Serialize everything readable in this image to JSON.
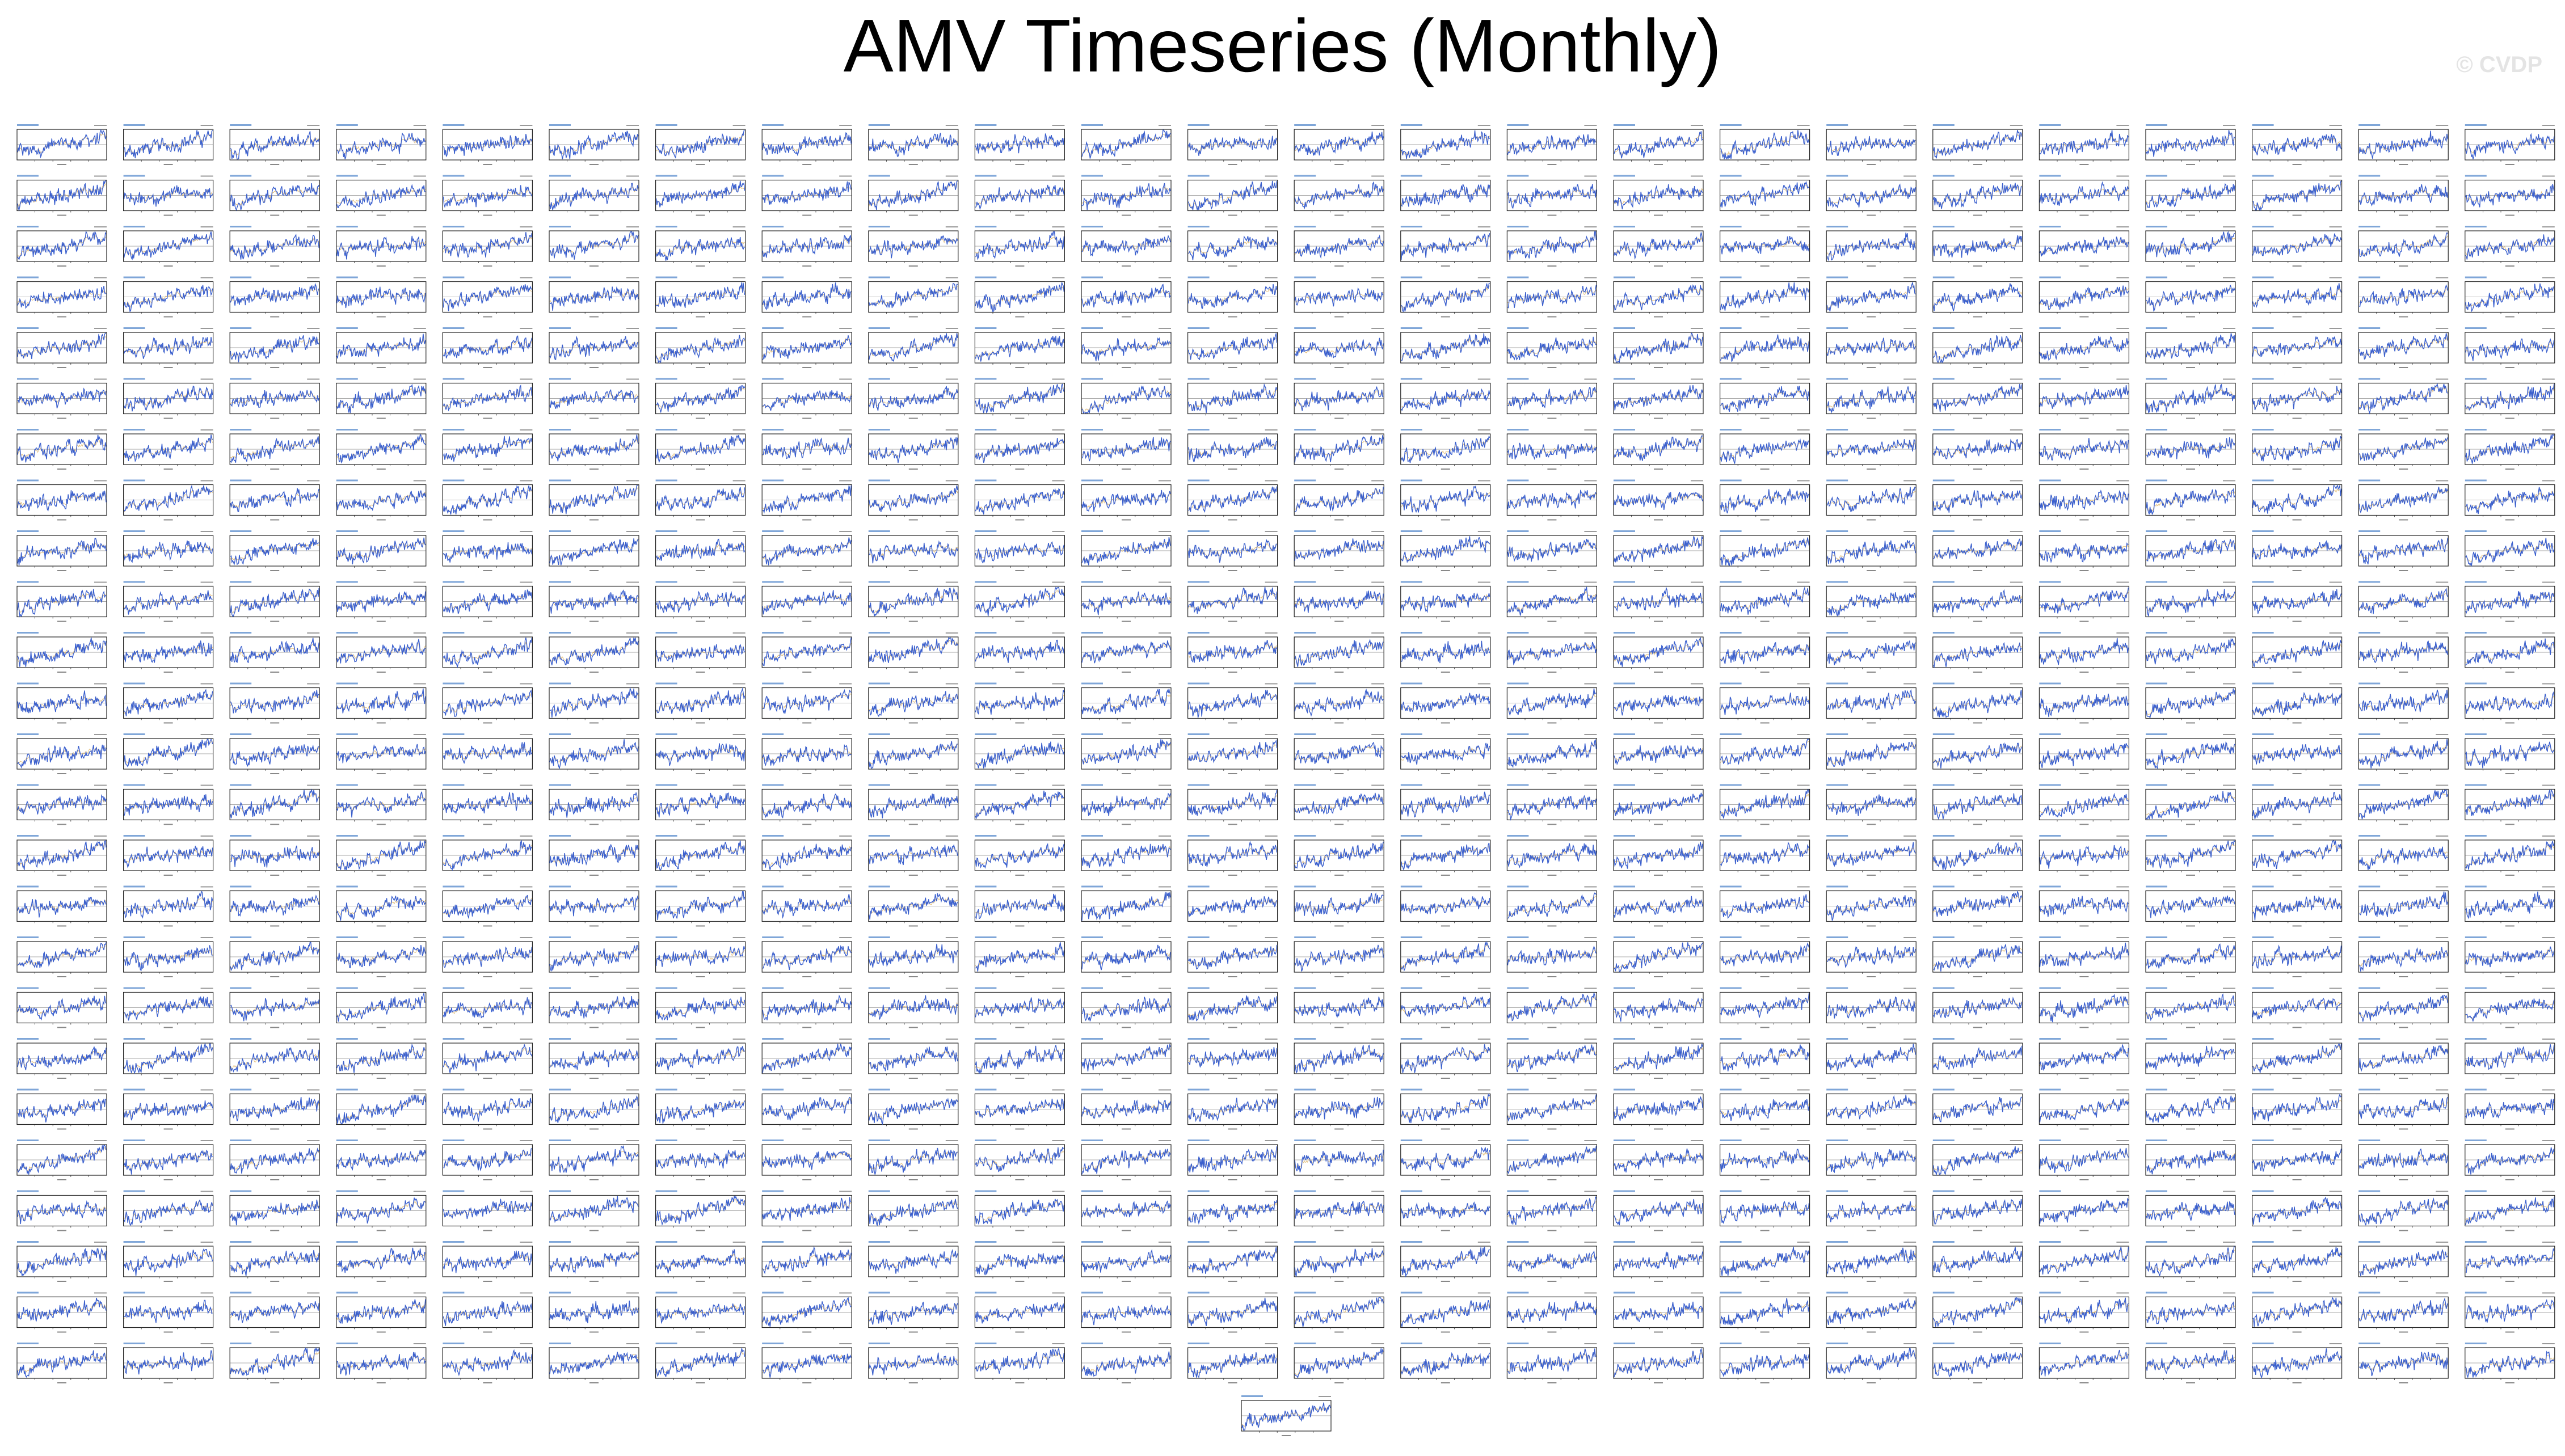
{
  "title": "AMV Timeseries (Monthly)",
  "watermark": "© CVDP",
  "chart_data": {
    "type": "line",
    "title": "AMV Timeseries (Monthly)",
    "layout": "small-multiples",
    "grid_rows": 25,
    "grid_cols": 24,
    "extra_panels": 1,
    "panel_count": 601,
    "series": [
      {
        "name": "",
        "color": "#3a5fcd",
        "description": "noisy monthly index with gentle upward trend"
      },
      {
        "name": "",
        "color": "#d9a441",
        "description": "faint low-pass overlay"
      }
    ],
    "ylim": [
      -1,
      1
    ],
    "grid": false,
    "legend": "none"
  }
}
